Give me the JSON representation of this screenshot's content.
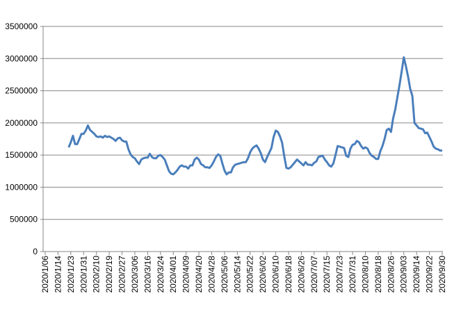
{
  "chart_data": {
    "type": "line",
    "color": "#4a7ebb",
    "grid": true,
    "ylim": [
      0,
      3500000
    ],
    "yticks": [
      0,
      500000,
      1000000,
      1500000,
      2000000,
      2500000,
      3000000,
      3500000
    ],
    "categories": [
      "2020/1/06",
      null,
      null,
      null,
      null,
      null,
      "2020/1/14",
      null,
      null,
      null,
      null,
      null,
      "2020/1/23",
      null,
      null,
      null,
      null,
      null,
      "2020/1/31",
      null,
      null,
      null,
      null,
      null,
      "2020/2/10",
      null,
      null,
      null,
      null,
      null,
      "2020/2/19",
      null,
      null,
      null,
      null,
      null,
      "2020/2/27",
      null,
      null,
      null,
      null,
      null,
      "2020/3/06",
      null,
      null,
      null,
      null,
      null,
      "2020/3/16",
      null,
      null,
      null,
      null,
      null,
      "2020/3/24",
      null,
      null,
      null,
      null,
      null,
      "2020/4/01",
      null,
      null,
      null,
      null,
      null,
      "2020/4/09",
      null,
      null,
      null,
      null,
      null,
      "2020/4/20",
      null,
      null,
      null,
      null,
      null,
      "2020/4/28",
      null,
      null,
      null,
      null,
      null,
      "2020/5/06",
      null,
      null,
      null,
      null,
      null,
      "2020/5/14",
      null,
      null,
      null,
      null,
      null,
      "2020/5/22",
      null,
      null,
      null,
      null,
      null,
      "2020/6/02",
      null,
      null,
      null,
      null,
      null,
      "2020/6/10",
      null,
      null,
      null,
      null,
      null,
      "2020/6/18",
      null,
      null,
      null,
      null,
      null,
      "2020/6/26",
      null,
      null,
      null,
      null,
      null,
      "2020/7/07",
      null,
      null,
      null,
      null,
      null,
      "2020/7/15",
      null,
      null,
      null,
      null,
      null,
      "2020/7/23",
      null,
      null,
      null,
      null,
      null,
      "2020/7/31",
      null,
      null,
      null,
      null,
      null,
      "2020/8/10",
      null,
      null,
      null,
      null,
      null,
      "2020/8/18",
      null,
      null,
      null,
      null,
      null,
      "2020/8/26",
      null,
      null,
      null,
      null,
      null,
      "2020/9/03",
      null,
      null,
      null,
      null,
      null,
      "2020/9/14",
      null,
      null,
      null,
      null,
      null,
      "2020/9/22",
      null,
      null,
      null,
      null,
      null,
      "2020/9/30"
    ],
    "values": [
      null,
      null,
      null,
      null,
      null,
      null,
      null,
      null,
      null,
      null,
      null,
      1620000,
      1700000,
      1800000,
      1670000,
      1670000,
      1750000,
      1830000,
      1830000,
      1880000,
      1960000,
      1890000,
      1860000,
      1830000,
      1790000,
      1780000,
      1790000,
      1770000,
      1800000,
      1780000,
      1790000,
      1770000,
      1750000,
      1720000,
      1760000,
      1770000,
      1730000,
      1710000,
      1710000,
      1590000,
      1510000,
      1470000,
      1450000,
      1400000,
      1360000,
      1430000,
      1450000,
      1460000,
      1460000,
      1520000,
      1470000,
      1450000,
      1450000,
      1490000,
      1500000,
      1470000,
      1430000,
      1340000,
      1250000,
      1210000,
      1200000,
      1230000,
      1270000,
      1320000,
      1340000,
      1320000,
      1320000,
      1290000,
      1340000,
      1340000,
      1430000,
      1460000,
      1430000,
      1360000,
      1340000,
      1310000,
      1310000,
      1300000,
      1340000,
      1400000,
      1470000,
      1510000,
      1490000,
      1370000,
      1260000,
      1200000,
      1230000,
      1230000,
      1310000,
      1350000,
      1360000,
      1370000,
      1380000,
      1390000,
      1390000,
      1450000,
      1540000,
      1600000,
      1630000,
      1650000,
      1600000,
      1530000,
      1430000,
      1390000,
      1470000,
      1540000,
      1610000,
      1780000,
      1880000,
      1860000,
      1790000,
      1690000,
      1480000,
      1300000,
      1290000,
      1310000,
      1350000,
      1390000,
      1430000,
      1400000,
      1370000,
      1340000,
      1390000,
      1350000,
      1350000,
      1340000,
      1380000,
      1400000,
      1470000,
      1480000,
      1490000,
      1430000,
      1390000,
      1340000,
      1320000,
      1370000,
      1500000,
      1640000,
      1630000,
      1620000,
      1610000,
      1490000,
      1470000,
      1600000,
      1660000,
      1670000,
      1720000,
      1700000,
      1640000,
      1600000,
      1620000,
      1600000,
      1530000,
      1490000,
      1470000,
      1440000,
      1440000,
      1560000,
      1640000,
      1750000,
      1890000,
      1910000,
      1860000,
      2070000,
      2210000,
      2400000,
      2590000,
      2800000,
      3020000,
      2880000,
      2720000,
      2530000,
      2420000,
      2000000,
      1960000,
      1920000,
      1910000,
      1900000,
      1840000,
      1850000,
      1780000,
      1710000,
      1630000,
      1600000,
      1590000,
      1570000,
      1570000
    ]
  }
}
